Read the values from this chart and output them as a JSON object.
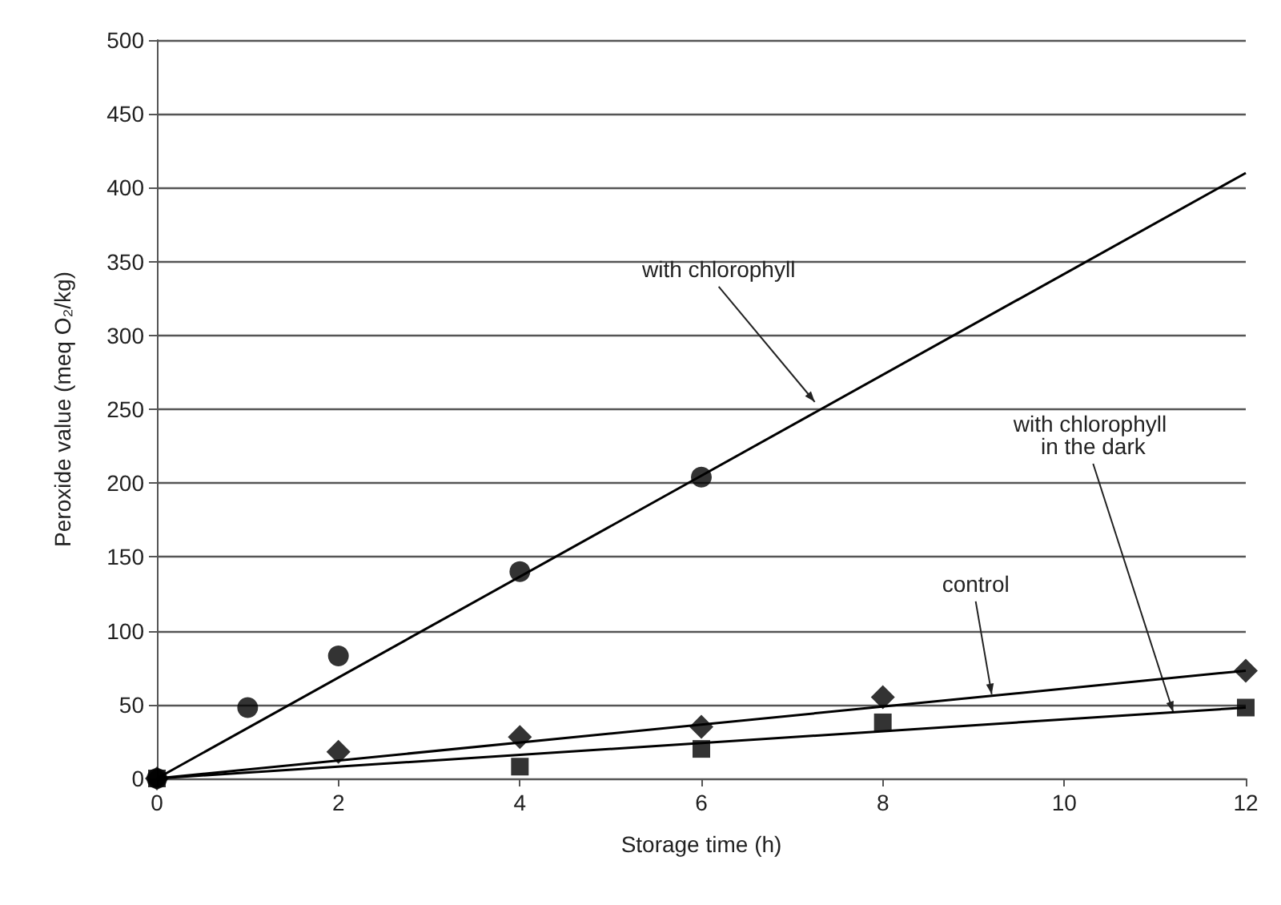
{
  "chart_data": {
    "type": "scatter",
    "xlabel": "Storage time (h)",
    "ylabel": "Peroxide value (meq O₂/kg)",
    "xlim": [
      0,
      12
    ],
    "xticks": [
      0,
      2,
      4,
      6,
      8,
      10,
      12
    ],
    "ylim": [
      0,
      500
    ],
    "yticks": [
      0,
      50,
      100,
      150,
      200,
      250,
      300,
      350,
      400,
      450,
      500
    ],
    "grid": "y",
    "series": [
      {
        "marker": "circle",
        "color": "#000000",
        "x": [
          0,
          1,
          2,
          4,
          6
        ],
        "values": [
          0,
          48,
          83,
          140,
          204
        ]
      },
      {
        "marker": "diamond",
        "color": "#000000",
        "x": [
          0,
          2,
          4,
          6,
          8,
          12
        ],
        "values": [
          0,
          18,
          28,
          35,
          55,
          73
        ]
      },
      {
        "marker": "square",
        "color": "#000000",
        "x": [
          0,
          4,
          6,
          8,
          12
        ],
        "values": [
          0,
          8,
          20,
          38,
          48
        ]
      },
      {
        "type": "line",
        "marker": "none",
        "color": "#000000",
        "x": [
          0,
          12
        ],
        "values": [
          0,
          410
        ]
      },
      {
        "type": "line",
        "marker": "none",
        "color": "#000000",
        "x": [
          0,
          12
        ],
        "values": [
          0,
          73
        ]
      },
      {
        "type": "line",
        "marker": "none",
        "color": "#000000",
        "x": [
          0,
          12
        ],
        "values": [
          0,
          48
        ]
      }
    ],
    "annotations": [
      {
        "text": "with chlorophyll",
        "x": 7.25,
        "y": 255
      },
      {
        "text": "control",
        "x": 9.2,
        "y": 57
      },
      {
        "text": "with chlorophyll in the dark",
        "x": 11.2,
        "y": 45
      }
    ]
  }
}
